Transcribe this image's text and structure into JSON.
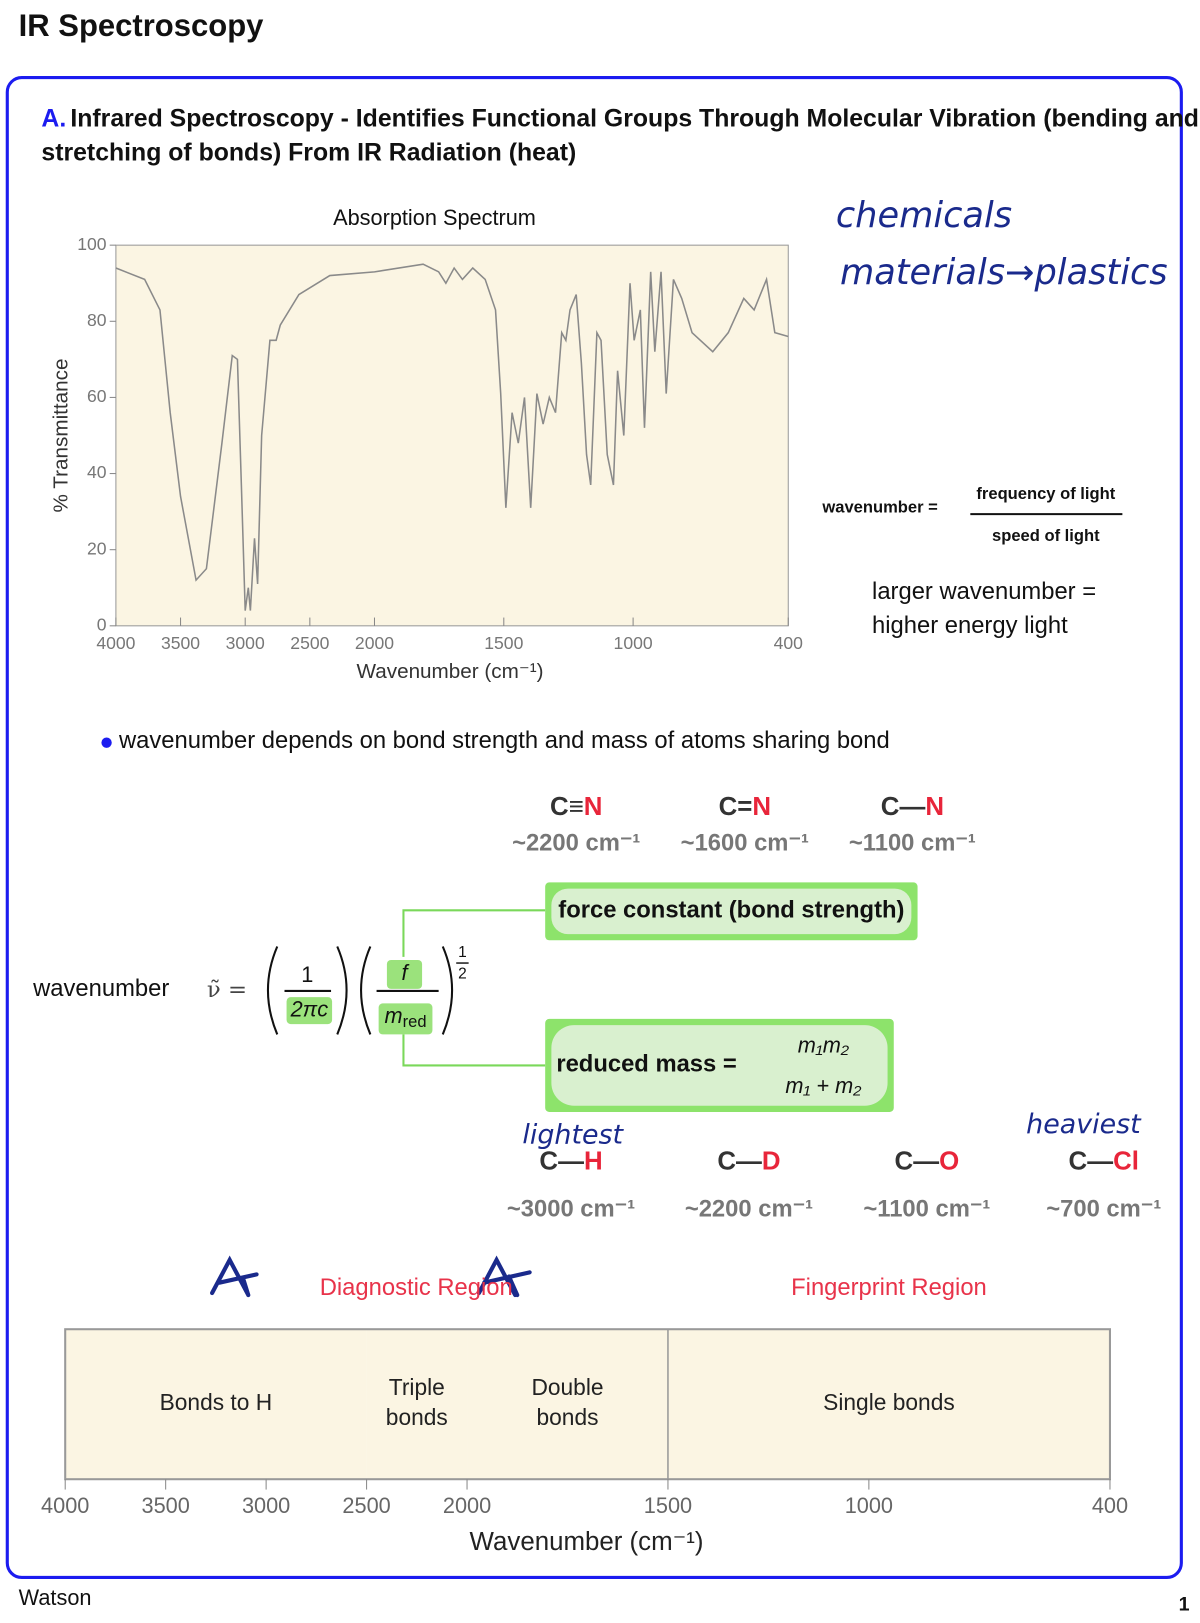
{
  "header": {
    "title": "IR Spectroscopy"
  },
  "section": {
    "label": "A.",
    "heading_lines": [
      "Infrared Spectroscopy - Identifies Functional Groups Through Molecular Vibration (bending and",
      "stretching of bonds) From IR Radiation (heat)"
    ]
  },
  "handwriting": {
    "line1": "chemicals",
    "line2": "materials→plastics",
    "lightest": "lightest",
    "heaviest": "heaviest"
  },
  "spectrum": {
    "type": "line",
    "title": "Absorption Spectrum",
    "x_label": "Wavenumber (cm⁻¹)",
    "y_label": "% Transmittance",
    "xlim": [
      4000,
      400
    ],
    "xbreak": 2000,
    "xticks": [
      4000,
      3500,
      3000,
      2500,
      2000,
      1500,
      1000,
      400
    ],
    "ylim": [
      0,
      100
    ],
    "yticks": [
      0,
      20,
      40,
      60,
      80,
      100
    ],
    "color": "#8a8a8a",
    "x": [
      4000,
      3778,
      3659,
      3580,
      3500,
      3380,
      3300,
      3180,
      3100,
      3060,
      3030,
      3000,
      2976,
      2960,
      2928,
      2904,
      2873,
      2809,
      2761,
      2729,
      2585,
      2346,
      2000,
      1812,
      1752,
      1724,
      1692,
      1660,
      1620,
      1572,
      1532,
      1512,
      1492,
      1468,
      1444,
      1420,
      1396,
      1372,
      1348,
      1324,
      1300,
      1276,
      1260,
      1244,
      1220,
      1200,
      1180,
      1164,
      1140,
      1124,
      1100,
      1076,
      1060,
      1036,
      1012,
      996,
      972,
      956,
      932,
      916,
      892,
      872,
      844,
      812,
      772,
      692,
      632,
      572,
      532,
      484,
      452,
      400
    ],
    "values": [
      94,
      91,
      83,
      56,
      34,
      12,
      15,
      48,
      71,
      70,
      37,
      4,
      10,
      4,
      23,
      11,
      50,
      75,
      75,
      79,
      87,
      92,
      93,
      95,
      93,
      90,
      94,
      91,
      94,
      91,
      83,
      61,
      31,
      56,
      48,
      60,
      31,
      61,
      53,
      60,
      56,
      77,
      75,
      83,
      87,
      69,
      45,
      37,
      77,
      75,
      45,
      37,
      67,
      50,
      90,
      75,
      83,
      52,
      93,
      72,
      93,
      61,
      91,
      86,
      77,
      72,
      77,
      86,
      83,
      91,
      77,
      76
    ]
  },
  "definition": {
    "lhs": "wavenumber =",
    "numerator": "frequency of light",
    "denominator": "speed of light"
  },
  "note_lines": [
    "larger wavenumber =",
    "higher energy light"
  ],
  "bullet": "wavenumber depends on bond strength and mass of atoms sharing bond",
  "bonds_top": [
    {
      "left": "C",
      "bond": "≡",
      "right": "N",
      "value": "~2200 cm⁻¹"
    },
    {
      "left": "C",
      "bond": "=",
      "right": "N",
      "value": "~1600 cm⁻¹"
    },
    {
      "left": "C",
      "bond": "—",
      "right": "N",
      "value": "~1100 cm⁻¹"
    }
  ],
  "equation": {
    "label": "wavenumber",
    "lhs": "ν̃ =",
    "one": "1",
    "two_pi_c": "2πc",
    "f": "f",
    "m": "m",
    "red": "red",
    "exp_num": "1",
    "exp_den": "2",
    "force_constant": "force constant (bond strength)",
    "reduced_mass": "reduced mass =",
    "rm_num": "m₁m₂",
    "rm_den": "m₁ + m₂"
  },
  "bonds_bottom": [
    {
      "left": "C",
      "bond": "—",
      "right": "H",
      "value": "~3000 cm⁻¹"
    },
    {
      "left": "C",
      "bond": "—",
      "right": "D",
      "value": "~2200 cm⁻¹"
    },
    {
      "left": "C",
      "bond": "—",
      "right": "O",
      "value": "~1100 cm⁻¹"
    },
    {
      "left": "C",
      "bond": "—",
      "right": "Cl",
      "value": "~700 cm⁻¹"
    }
  ],
  "regions": {
    "x_label": "Wavenumber (cm⁻¹)",
    "xlim": [
      4000,
      400
    ],
    "xbreak": 2000,
    "xticks": [
      4000,
      3500,
      3000,
      2500,
      2000,
      1500,
      1000,
      400
    ],
    "groups": [
      {
        "name": "Diagnostic Region",
        "range": [
          4000,
          1500
        ]
      },
      {
        "name": "Fingerprint Region",
        "range": [
          1500,
          400
        ]
      }
    ],
    "bands": [
      {
        "label": [
          "Bonds to H"
        ],
        "range": [
          4000,
          2500
        ]
      },
      {
        "label": [
          "Triple",
          "bonds"
        ],
        "range": [
          2500,
          2000
        ]
      },
      {
        "label": [
          "Double",
          "bonds"
        ],
        "range": [
          2000,
          1500
        ]
      },
      {
        "label": [
          "Single bonds"
        ],
        "range": [
          1500,
          400
        ]
      }
    ]
  },
  "footer": {
    "author": "Watson",
    "page": "1"
  }
}
